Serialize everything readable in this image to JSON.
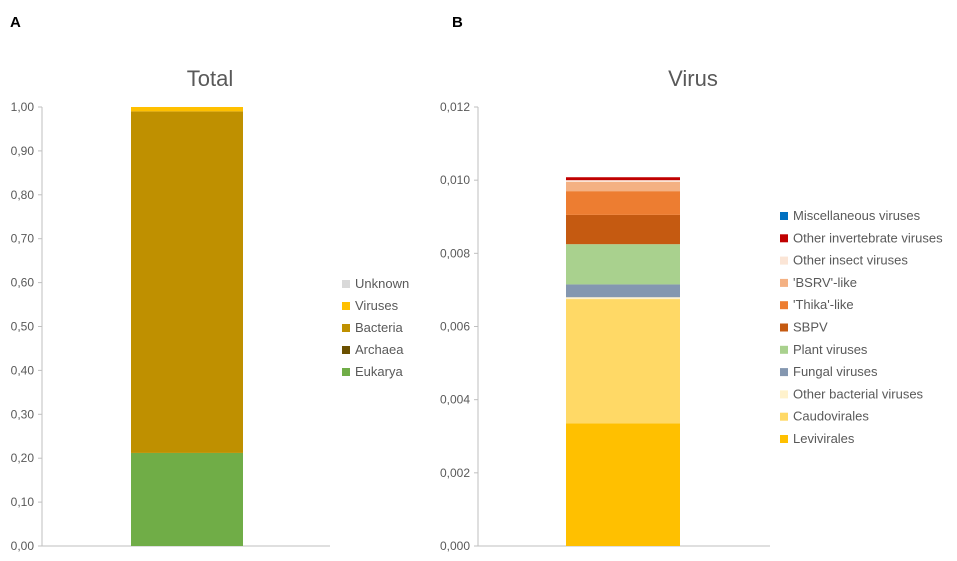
{
  "panels": [
    {
      "letter": "A"
    },
    {
      "letter": "B"
    }
  ],
  "chart_data": [
    {
      "type": "bar",
      "stacked": true,
      "title": "Total",
      "categories": [
        ""
      ],
      "ylim": [
        0,
        1.0
      ],
      "yticks": [
        "0,00",
        "0,10",
        "0,20",
        "0,30",
        "0,40",
        "0,50",
        "0,60",
        "0,70",
        "0,80",
        "0,90",
        "1,00"
      ],
      "legend_position": "right",
      "series": [
        {
          "name": "Eukarya",
          "values": [
            0.212
          ],
          "color": "#70ad47"
        },
        {
          "name": "Archaea",
          "values": [
            0.0
          ],
          "color": "#6b5000"
        },
        {
          "name": "Bacteria",
          "values": [
            0.778
          ],
          "color": "#bf9000"
        },
        {
          "name": "Viruses",
          "values": [
            0.01
          ],
          "color": "#ffc000"
        },
        {
          "name": "Unknown",
          "values": [
            0.0
          ],
          "color": "#d9d9d9"
        }
      ],
      "legend_order": [
        "Unknown",
        "Viruses",
        "Bacteria",
        "Archaea",
        "Eukarya"
      ]
    },
    {
      "type": "bar",
      "stacked": true,
      "title": "Virus",
      "categories": [
        ""
      ],
      "ylim": [
        0,
        0.012
      ],
      "yticks": [
        "0,000",
        "0,002",
        "0,004",
        "0,006",
        "0,008",
        "0,010",
        "0,012"
      ],
      "legend_position": "right",
      "series": [
        {
          "name": "Levivirales",
          "values": [
            0.00335
          ],
          "color": "#ffc000"
        },
        {
          "name": "Caudovirales",
          "values": [
            0.0034
          ],
          "color": "#ffd966"
        },
        {
          "name": "Other bacterial viruses",
          "values": [
            5e-05
          ],
          "color": "#fff2cc"
        },
        {
          "name": "Fungal viruses",
          "values": [
            0.00035
          ],
          "color": "#8497b0"
        },
        {
          "name": "Plant viruses",
          "values": [
            0.0011
          ],
          "color": "#a9d18e"
        },
        {
          "name": "SBPV",
          "values": [
            0.0008
          ],
          "color": "#c55a11"
        },
        {
          "name": "'Thika'-like",
          "values": [
            0.00065
          ],
          "color": "#ed7d31"
        },
        {
          "name": "'BSRV'-like",
          "values": [
            0.00025
          ],
          "color": "#f4b183"
        },
        {
          "name": "Other insect viruses",
          "values": [
            5e-05
          ],
          "color": "#fbe5d6"
        },
        {
          "name": "Other invertebrate viruses",
          "values": [
            8e-05
          ],
          "color": "#c00000"
        },
        {
          "name": "Miscellaneous viruses",
          "values": [
            0.0
          ],
          "color": "#0070c0"
        }
      ],
      "legend_order": [
        "Miscellaneous viruses",
        "Other invertebrate viruses",
        "Other insect viruses",
        "'BSRV'-like",
        "'Thika'-like",
        "SBPV",
        "Plant viruses",
        "Fungal viruses",
        "Other bacterial viruses",
        "Caudovirales",
        "Levivirales"
      ]
    }
  ]
}
